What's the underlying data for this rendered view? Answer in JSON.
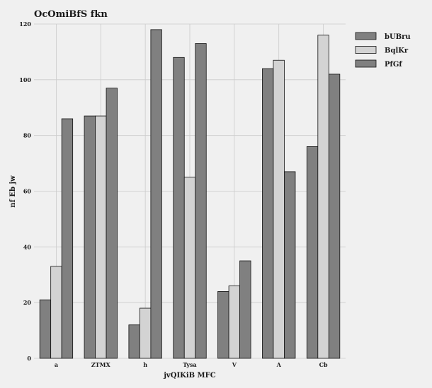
{
  "chart_data": {
    "type": "bar",
    "title": "OcOmiBfS fkn",
    "xlabel": "jvQIKiB MFC",
    "ylabel": "nf Eb jw",
    "categories": [
      "a",
      "ZTMX",
      "h",
      "Tysa",
      "V",
      "A",
      "Cb"
    ],
    "ylim": [
      0,
      120
    ],
    "yticks": [
      0,
      20,
      40,
      60,
      80,
      100,
      120
    ],
    "grid": true,
    "legend_position": "top-right",
    "series": [
      {
        "name": "bUBru",
        "color": "#808080",
        "values": [
          21,
          87,
          12,
          108,
          24,
          104,
          76
        ]
      },
      {
        "name": "BqlKr",
        "color": "#d3d3d3",
        "values": [
          33,
          87,
          18,
          65,
          26,
          107,
          116
        ]
      },
      {
        "name": "PfGf",
        "color": "#808080",
        "values": [
          86,
          97,
          118,
          113,
          35,
          67,
          102
        ]
      }
    ]
  }
}
